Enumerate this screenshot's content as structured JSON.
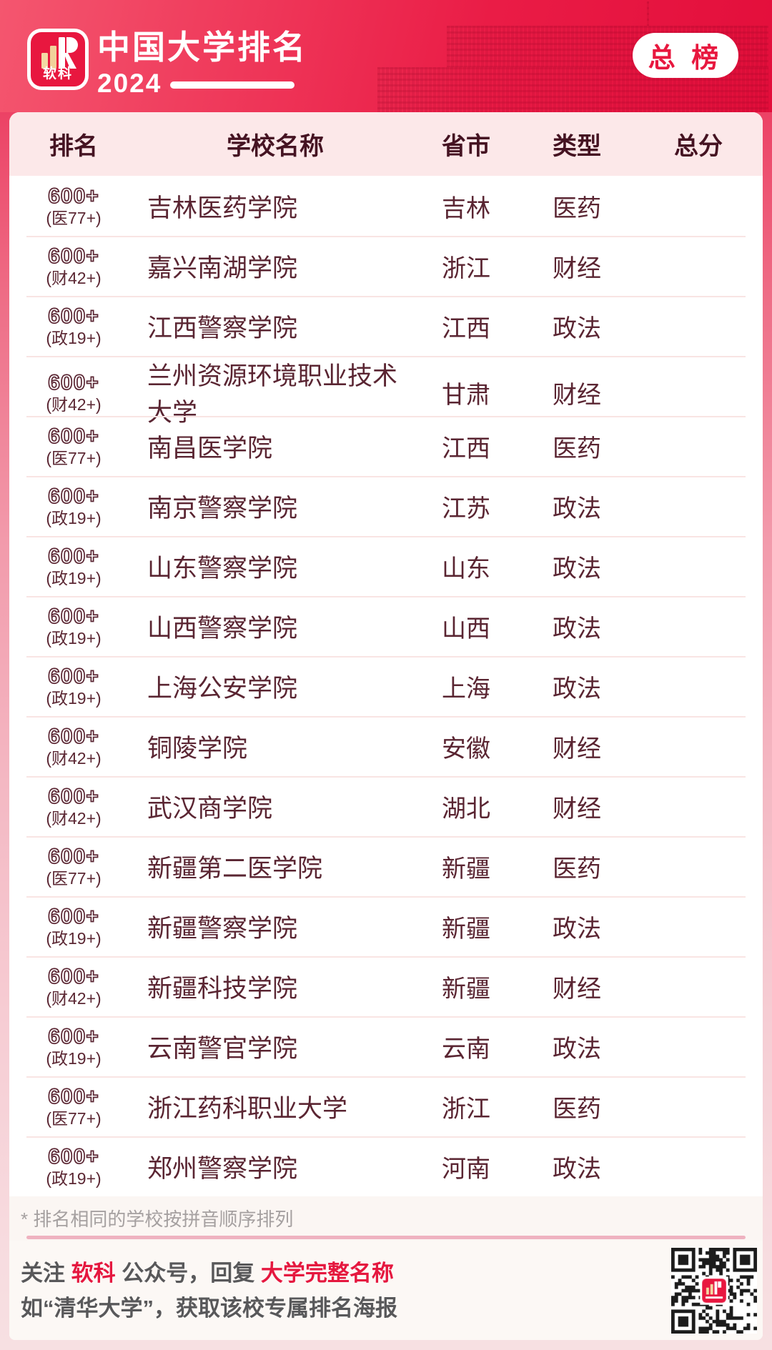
{
  "header": {
    "logo_text": "软科",
    "title": "中国大学排名",
    "year": "2024",
    "badge": "总 榜"
  },
  "table": {
    "columns": {
      "rank": "排名",
      "school": "学校名称",
      "province": "省市",
      "type": "类型",
      "score": "总分"
    },
    "rows": [
      {
        "rank": "600+",
        "rank_sub": "(医77+)",
        "school": "吉林医药学院",
        "province": "吉林",
        "type": "医药",
        "score": ""
      },
      {
        "rank": "600+",
        "rank_sub": "(财42+)",
        "school": "嘉兴南湖学院",
        "province": "浙江",
        "type": "财经",
        "score": ""
      },
      {
        "rank": "600+",
        "rank_sub": "(政19+)",
        "school": "江西警察学院",
        "province": "江西",
        "type": "政法",
        "score": ""
      },
      {
        "rank": "600+",
        "rank_sub": "(财42+)",
        "school": "兰州资源环境职业技术大学",
        "province": "甘肃",
        "type": "财经",
        "score": ""
      },
      {
        "rank": "600+",
        "rank_sub": "(医77+)",
        "school": "南昌医学院",
        "province": "江西",
        "type": "医药",
        "score": ""
      },
      {
        "rank": "600+",
        "rank_sub": "(政19+)",
        "school": "南京警察学院",
        "province": "江苏",
        "type": "政法",
        "score": ""
      },
      {
        "rank": "600+",
        "rank_sub": "(政19+)",
        "school": "山东警察学院",
        "province": "山东",
        "type": "政法",
        "score": ""
      },
      {
        "rank": "600+",
        "rank_sub": "(政19+)",
        "school": "山西警察学院",
        "province": "山西",
        "type": "政法",
        "score": ""
      },
      {
        "rank": "600+",
        "rank_sub": "(政19+)",
        "school": "上海公安学院",
        "province": "上海",
        "type": "政法",
        "score": ""
      },
      {
        "rank": "600+",
        "rank_sub": "(财42+)",
        "school": "铜陵学院",
        "province": "安徽",
        "type": "财经",
        "score": ""
      },
      {
        "rank": "600+",
        "rank_sub": "(财42+)",
        "school": "武汉商学院",
        "province": "湖北",
        "type": "财经",
        "score": ""
      },
      {
        "rank": "600+",
        "rank_sub": "(医77+)",
        "school": "新疆第二医学院",
        "province": "新疆",
        "type": "医药",
        "score": ""
      },
      {
        "rank": "600+",
        "rank_sub": "(政19+)",
        "school": "新疆警察学院",
        "province": "新疆",
        "type": "政法",
        "score": ""
      },
      {
        "rank": "600+",
        "rank_sub": "(财42+)",
        "school": "新疆科技学院",
        "province": "新疆",
        "type": "财经",
        "score": ""
      },
      {
        "rank": "600+",
        "rank_sub": "(政19+)",
        "school": "云南警官学院",
        "province": "云南",
        "type": "政法",
        "score": ""
      },
      {
        "rank": "600+",
        "rank_sub": "(医77+)",
        "school": "浙江药科职业大学",
        "province": "浙江",
        "type": "医药",
        "score": ""
      },
      {
        "rank": "600+",
        "rank_sub": "(政19+)",
        "school": "郑州警察学院",
        "province": "河南",
        "type": "政法",
        "score": ""
      }
    ]
  },
  "footnote": "* 排名相同的学校按拼音顺序排列",
  "footer": {
    "line1": [
      {
        "text": "关注 ",
        "highlight": false
      },
      {
        "text": "软科",
        "highlight": true
      },
      {
        "text": " 公众号，回复 ",
        "highlight": false
      },
      {
        "text": "大学完整名称",
        "highlight": true
      }
    ],
    "line2": "如“清华大学”，获取该校专属排名海报"
  },
  "colors": {
    "accent": "#e5173f",
    "header_gradient_start": "#f4566f",
    "header_gradient_end": "#e30e3b",
    "table_header_bg": "#fce8e9",
    "maroon_text": "#5a2532",
    "dark_header_text": "#451322",
    "row_divider": "#f9e4e3",
    "footnote_divider": "#efb2c0",
    "footnote_text": "#a5a0a0",
    "footer_text": "#58585a"
  }
}
